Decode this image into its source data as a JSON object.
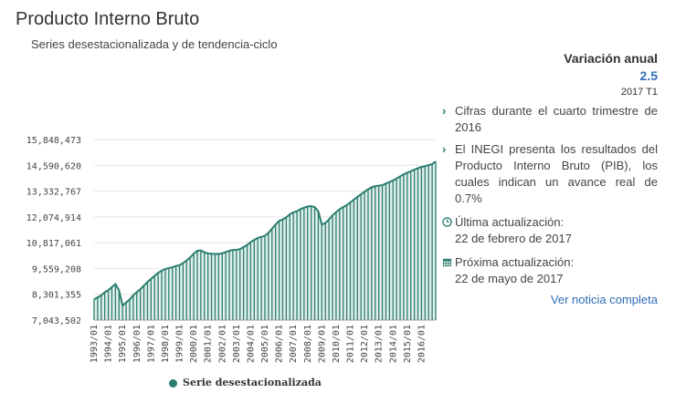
{
  "header": {
    "title": "Producto Interno Bruto",
    "subtitle": "Series desestacionalizada y de tendencia-ciclo"
  },
  "sidebar": {
    "variacion_title": "Variación anual",
    "variacion_value": "2.5",
    "variacion_period": "2017 T1",
    "notes": [
      "Cifras durante el cuarto trimestre de 2016",
      "El INEGI presenta los resultados del Producto Interno Bruto (PIB), los cuales indican un avance real de 0.7%"
    ],
    "ultima_label": "Última actualización:",
    "ultima_date": "22 de febrero de 2017",
    "proxima_label": "Próxima actualización:",
    "proxima_date": "22 de mayo de 2017",
    "link_label": "Ver noticia completa"
  },
  "colors": {
    "series": "#2a7d6f",
    "accent": "#2f6db5"
  },
  "chart_data": {
    "type": "area",
    "x": [
      "1993/01",
      "1993/02",
      "1993/03",
      "1993/04",
      "1994/01",
      "1994/02",
      "1994/03",
      "1994/04",
      "1995/01",
      "1995/02",
      "1995/03",
      "1995/04",
      "1996/01",
      "1996/02",
      "1996/03",
      "1996/04",
      "1997/01",
      "1997/02",
      "1997/03",
      "1997/04",
      "1998/01",
      "1998/02",
      "1998/03",
      "1998/04",
      "1999/01",
      "1999/02",
      "1999/03",
      "1999/04",
      "2000/01",
      "2000/02",
      "2000/03",
      "2000/04",
      "2001/01",
      "2001/02",
      "2001/03",
      "2001/04",
      "2002/01",
      "2002/02",
      "2002/03",
      "2002/04",
      "2003/01",
      "2003/02",
      "2003/03",
      "2003/04",
      "2004/01",
      "2004/02",
      "2004/03",
      "2004/04",
      "2005/01",
      "2005/02",
      "2005/03",
      "2005/04",
      "2006/01",
      "2006/02",
      "2006/03",
      "2006/04",
      "2007/01",
      "2007/02",
      "2007/03",
      "2007/04",
      "2008/01",
      "2008/02",
      "2008/03",
      "2008/04",
      "2009/01",
      "2009/02",
      "2009/03",
      "2009/04",
      "2010/01",
      "2010/02",
      "2010/03",
      "2010/04",
      "2011/01",
      "2011/02",
      "2011/03",
      "2011/04",
      "2012/01",
      "2012/02",
      "2012/03",
      "2012/04",
      "2013/01",
      "2013/02",
      "2013/03",
      "2013/04",
      "2014/01",
      "2014/02",
      "2014/03",
      "2014/04",
      "2015/01",
      "2015/02",
      "2015/03",
      "2015/04",
      "2016/01",
      "2016/02",
      "2016/03",
      "2016/04",
      "2017/01"
    ],
    "tick_labels": [
      "1993/01",
      "1994/01",
      "1995/01",
      "1996/01",
      "1997/01",
      "1998/01",
      "1999/01",
      "2000/01",
      "2001/01",
      "2002/01",
      "2003/01",
      "2004/01",
      "2005/01",
      "2006/01",
      "2007/01",
      "2008/01",
      "2009/01",
      "2010/01",
      "2011/01",
      "2012/01",
      "2013/01",
      "2014/01",
      "2015/01",
      "2016/01"
    ],
    "series": [
      {
        "name": "Serie desestacionalizada",
        "values": [
          8050000,
          8150000,
          8250000,
          8400000,
          8500000,
          8650000,
          8800000,
          8500000,
          7750000,
          7900000,
          8050000,
          8250000,
          8400000,
          8550000,
          8720000,
          8900000,
          9050000,
          9200000,
          9350000,
          9450000,
          9530000,
          9580000,
          9620000,
          9680000,
          9720000,
          9820000,
          9950000,
          10100000,
          10280000,
          10420000,
          10440000,
          10350000,
          10290000,
          10280000,
          10270000,
          10270000,
          10300000,
          10360000,
          10420000,
          10460000,
          10470000,
          10500000,
          10600000,
          10700000,
          10850000,
          10950000,
          11050000,
          11100000,
          11150000,
          11300000,
          11500000,
          11700000,
          11880000,
          11950000,
          12050000,
          12200000,
          12300000,
          12350000,
          12450000,
          12520000,
          12580000,
          12600000,
          12550000,
          12350000,
          11700000,
          11780000,
          11950000,
          12150000,
          12300000,
          12450000,
          12550000,
          12650000,
          12780000,
          12920000,
          13050000,
          13180000,
          13300000,
          13420000,
          13520000,
          13570000,
          13600000,
          13620000,
          13700000,
          13780000,
          13850000,
          13950000,
          14050000,
          14150000,
          14230000,
          14300000,
          14380000,
          14450000,
          14510000,
          14550000,
          14600000,
          14650000,
          14780000
        ]
      }
    ],
    "y_ticks": [
      "15,848,473",
      "14,590,620",
      "13,332,767",
      "12,074,914",
      "10,817,061",
      "9,559,208",
      "8,301,355",
      "7,043,502"
    ],
    "ylim": [
      7043502,
      15848473
    ],
    "grid": true,
    "legend_position": "bottom"
  }
}
